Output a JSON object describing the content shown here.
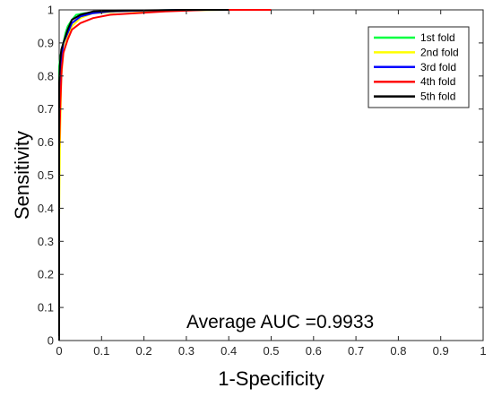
{
  "chart_data": {
    "type": "line",
    "title": "",
    "xlabel": "1-Specificity",
    "ylabel": "Sensitivity",
    "xlim": [
      0,
      1
    ],
    "ylim": [
      0,
      1
    ],
    "x_ticks": [
      "0",
      "0.1",
      "0.2",
      "0.3",
      "0.4",
      "0.5",
      "0.6",
      "0.7",
      "0.8",
      "0.9",
      "1"
    ],
    "y_ticks": [
      "0",
      "0.1",
      "0.2",
      "0.3",
      "0.4",
      "0.5",
      "0.6",
      "0.7",
      "0.8",
      "0.9",
      "1"
    ],
    "grid": false,
    "legend_position": "top-right",
    "annotation": "Average AUC =0.9933",
    "series": [
      {
        "name": "1st fold",
        "color": "#00ff40",
        "x": [
          0,
          0,
          0.003,
          0.006,
          0.01,
          0.015,
          0.02,
          0.03,
          0.04,
          0.06,
          0.1,
          0.2,
          0.3,
          0.45
        ],
        "y": [
          0,
          0.83,
          0.86,
          0.88,
          0.9,
          0.93,
          0.95,
          0.97,
          0.985,
          0.99,
          0.995,
          0.998,
          1,
          1
        ]
      },
      {
        "name": "2nd fold",
        "color": "#ffff00",
        "x": [
          0,
          0,
          0.002,
          0.005,
          0.01,
          0.02,
          0.03,
          0.05,
          0.08,
          0.15,
          0.25,
          0.4,
          0.5
        ],
        "y": [
          0,
          0.38,
          0.6,
          0.8,
          0.87,
          0.92,
          0.95,
          0.975,
          0.99,
          0.995,
          0.998,
          1,
          1
        ]
      },
      {
        "name": "3rd fold",
        "color": "#0000ff",
        "x": [
          0,
          0,
          0.003,
          0.006,
          0.01,
          0.02,
          0.03,
          0.05,
          0.08,
          0.12,
          0.2,
          0.3,
          0.42
        ],
        "y": [
          0,
          0.66,
          0.8,
          0.86,
          0.9,
          0.93,
          0.96,
          0.98,
          0.99,
          0.995,
          0.998,
          1,
          1
        ]
      },
      {
        "name": "4th fold",
        "color": "#ff0000",
        "x": [
          0,
          0,
          0.003,
          0.006,
          0.01,
          0.02,
          0.03,
          0.05,
          0.08,
          0.12,
          0.18,
          0.25,
          0.35,
          0.5
        ],
        "y": [
          0,
          0.58,
          0.72,
          0.82,
          0.87,
          0.91,
          0.94,
          0.96,
          0.975,
          0.985,
          0.99,
          0.995,
          1,
          1
        ]
      },
      {
        "name": "5th fold",
        "color": "#000000",
        "x": [
          0,
          0,
          0.002,
          0.005,
          0.01,
          0.015,
          0.02,
          0.03,
          0.05,
          0.08,
          0.15,
          0.3,
          0.4
        ],
        "y": [
          0,
          0.78,
          0.84,
          0.88,
          0.9,
          0.92,
          0.94,
          0.97,
          0.985,
          0.995,
          0.998,
          1,
          1
        ]
      }
    ]
  }
}
